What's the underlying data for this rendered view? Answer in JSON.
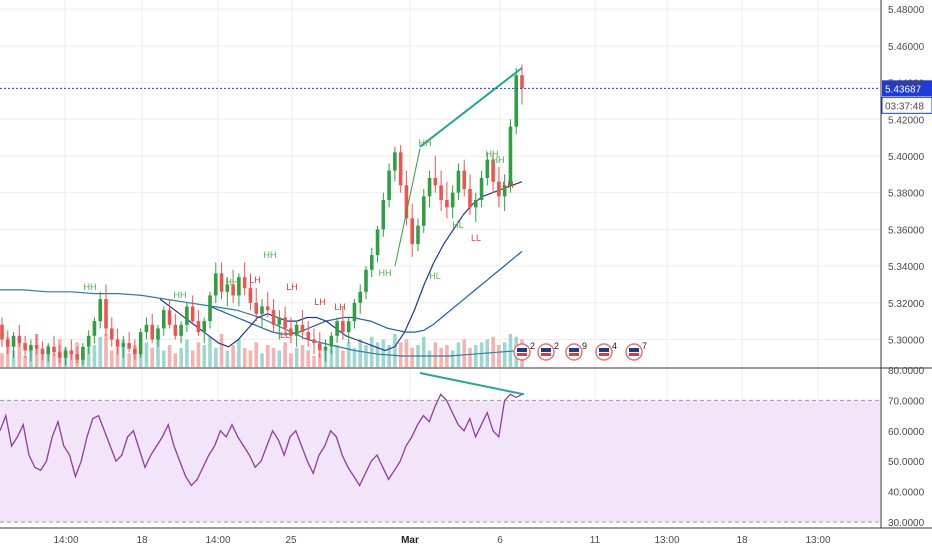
{
  "colors": {
    "up": "#26a69a",
    "down": "#ef5350",
    "up_green": "#2ea043",
    "swing_line": "#26a69a",
    "hh_green": "#4caf50",
    "ll_red": "#e53935",
    "ma_short": "#1e3a8a",
    "ma_long": "#1e5fa8",
    "ma_flat": "#2e7da0",
    "rsi_line": "#8e3d9b",
    "rsi_band": "#f3e5f9",
    "rsi_divergence": "#26a69a",
    "current_price_line": "#1e3ad8",
    "price_tag_bg": "#1e3ad8",
    "grid": "#eeeeee",
    "axis_text": "#4a4a4a"
  },
  "price_axis": {
    "ticks": [
      "5.48000",
      "5.46000",
      "5.44000",
      "5.42000",
      "5.40000",
      "5.38000",
      "5.36000",
      "5.34000",
      "5.32000",
      "5.30000"
    ],
    "current_price": "5.43687",
    "countdown": "03:37:48"
  },
  "rsi_axis": {
    "ticks": [
      "80.0000",
      "70.0000",
      "60.0000",
      "50.0000",
      "40.0000",
      "30.0000"
    ]
  },
  "time_axis": {
    "labels": [
      {
        "text": "14:00",
        "bold": false
      },
      {
        "text": "18",
        "bold": false
      },
      {
        "text": "14:00",
        "bold": false
      },
      {
        "text": "25",
        "bold": false
      },
      {
        "text": "Mar",
        "bold": true
      },
      {
        "text": "6",
        "bold": false
      },
      {
        "text": "11",
        "bold": false
      },
      {
        "text": "13:00",
        "bold": false
      },
      {
        "text": "18",
        "bold": false
      },
      {
        "text": "13:00",
        "bold": false
      }
    ]
  },
  "events": [
    {
      "count": "2"
    },
    {
      "count": "2"
    },
    {
      "count": "9"
    },
    {
      "count": "4"
    },
    {
      "count": "7"
    }
  ],
  "swing_labels": [
    {
      "text": "HH",
      "type": "HH"
    },
    {
      "text": "HH",
      "type": "HH"
    },
    {
      "text": "HH",
      "type": "HH"
    },
    {
      "text": "LH",
      "type": "LH"
    },
    {
      "text": "LH",
      "type": "LH"
    },
    {
      "text": "LH",
      "type": "LH"
    },
    {
      "text": "LL",
      "type": "LL"
    },
    {
      "text": "HH",
      "type": "HH"
    },
    {
      "text": "HH",
      "type": "HH"
    },
    {
      "text": "HL",
      "type": "HL"
    },
    {
      "text": "HL",
      "type": "HL"
    },
    {
      "text": "HH",
      "type": "HH"
    },
    {
      "text": "LL",
      "type": "LL"
    },
    {
      "text": "HH",
      "type": "HH"
    },
    {
      "text": "LH",
      "type": "LH"
    },
    {
      "text": "HH",
      "type": "HH"
    },
    {
      "text": "LH",
      "type": "LH"
    }
  ],
  "chart_data": [
    {
      "type": "candlestick",
      "ylim": [
        5.285,
        5.485
      ],
      "grid": true,
      "current_price": 5.43687,
      "candles": [
        [
          5.308,
          5.312,
          5.296,
          5.3
        ],
        [
          5.3,
          5.305,
          5.292,
          5.296
        ],
        [
          5.296,
          5.304,
          5.29,
          5.302
        ],
        [
          5.302,
          5.308,
          5.296,
          5.298
        ],
        [
          5.298,
          5.302,
          5.29,
          5.294
        ],
        [
          5.294,
          5.3,
          5.288,
          5.297
        ],
        [
          5.297,
          5.303,
          5.292,
          5.295
        ],
        [
          5.295,
          5.299,
          5.289,
          5.292
        ],
        [
          5.292,
          5.298,
          5.288,
          5.296
        ],
        [
          5.296,
          5.302,
          5.291,
          5.293
        ],
        [
          5.293,
          5.297,
          5.287,
          5.29
        ],
        [
          5.29,
          5.296,
          5.286,
          5.294
        ],
        [
          5.294,
          5.3,
          5.289,
          5.292
        ],
        [
          5.292,
          5.296,
          5.287,
          5.289
        ],
        [
          5.289,
          5.298,
          5.286,
          5.296
        ],
        [
          5.296,
          5.305,
          5.292,
          5.302
        ],
        [
          5.302,
          5.312,
          5.298,
          5.31
        ],
        [
          5.31,
          5.326,
          5.306,
          5.322
        ],
        [
          5.322,
          5.33,
          5.302,
          5.306
        ],
        [
          5.306,
          5.312,
          5.296,
          5.3
        ],
        [
          5.3,
          5.306,
          5.292,
          5.296
        ],
        [
          5.296,
          5.302,
          5.29,
          5.298
        ],
        [
          5.298,
          5.304,
          5.293,
          5.295
        ],
        [
          5.295,
          5.3,
          5.289,
          5.292
        ],
        [
          5.292,
          5.306,
          5.29,
          5.304
        ],
        [
          5.304,
          5.312,
          5.3,
          5.308
        ],
        [
          5.308,
          5.314,
          5.298,
          5.3
        ],
        [
          5.3,
          5.308,
          5.296,
          5.306
        ],
        [
          5.306,
          5.318,
          5.302,
          5.316
        ],
        [
          5.316,
          5.322,
          5.306,
          5.308
        ],
        [
          5.308,
          5.314,
          5.3,
          5.302
        ],
        [
          5.302,
          5.31,
          5.298,
          5.308
        ],
        [
          5.308,
          5.32,
          5.304,
          5.318
        ],
        [
          5.318,
          5.324,
          5.308,
          5.31
        ],
        [
          5.31,
          5.316,
          5.302,
          5.304
        ],
        [
          5.304,
          5.312,
          5.298,
          5.31
        ],
        [
          5.31,
          5.326,
          5.306,
          5.324
        ],
        [
          5.324,
          5.342,
          5.32,
          5.336
        ],
        [
          5.336,
          5.342,
          5.322,
          5.326
        ],
        [
          5.326,
          5.334,
          5.318,
          5.33
        ],
        [
          5.33,
          5.338,
          5.32,
          5.324
        ],
        [
          5.324,
          5.336,
          5.318,
          5.334
        ],
        [
          5.334,
          5.342,
          5.324,
          5.328
        ],
        [
          5.328,
          5.336,
          5.316,
          5.32
        ],
        [
          5.32,
          5.328,
          5.31,
          5.314
        ],
        [
          5.314,
          5.322,
          5.306,
          5.318
        ],
        [
          5.318,
          5.326,
          5.312,
          5.316
        ],
        [
          5.316,
          5.322,
          5.304,
          5.308
        ],
        [
          5.308,
          5.316,
          5.3,
          5.312
        ],
        [
          5.312,
          5.318,
          5.302,
          5.306
        ],
        [
          5.306,
          5.312,
          5.298,
          5.302
        ],
        [
          5.302,
          5.31,
          5.296,
          5.308
        ],
        [
          5.308,
          5.316,
          5.3,
          5.304
        ],
        [
          5.304,
          5.31,
          5.296,
          5.3
        ],
        [
          5.3,
          5.306,
          5.292,
          5.298
        ],
        [
          5.298,
          5.304,
          5.29,
          5.294
        ],
        [
          5.294,
          5.3,
          5.288,
          5.296
        ],
        [
          5.296,
          5.304,
          5.292,
          5.302
        ],
        [
          5.302,
          5.312,
          5.298,
          5.31
        ],
        [
          5.31,
          5.318,
          5.3,
          5.304
        ],
        [
          5.304,
          5.312,
          5.298,
          5.31
        ],
        [
          5.31,
          5.322,
          5.306,
          5.32
        ],
        [
          5.32,
          5.33,
          5.314,
          5.326
        ],
        [
          5.326,
          5.34,
          5.322,
          5.338
        ],
        [
          5.338,
          5.35,
          5.334,
          5.346
        ],
        [
          5.346,
          5.362,
          5.342,
          5.36
        ],
        [
          5.36,
          5.38,
          5.356,
          5.376
        ],
        [
          5.376,
          5.396,
          5.372,
          5.392
        ],
        [
          5.392,
          5.405,
          5.386,
          5.402
        ],
        [
          5.402,
          5.406,
          5.38,
          5.384
        ],
        [
          5.384,
          5.392,
          5.362,
          5.366
        ],
        [
          5.366,
          5.374,
          5.345,
          5.352
        ],
        [
          5.352,
          5.366,
          5.348,
          5.362
        ],
        [
          5.362,
          5.382,
          5.358,
          5.378
        ],
        [
          5.378,
          5.392,
          5.372,
          5.388
        ],
        [
          5.388,
          5.4,
          5.38,
          5.384
        ],
        [
          5.384,
          5.392,
          5.37,
          5.376
        ],
        [
          5.376,
          5.386,
          5.366,
          5.372
        ],
        [
          5.372,
          5.384,
          5.366,
          5.38
        ],
        [
          5.38,
          5.396,
          5.376,
          5.392
        ],
        [
          5.392,
          5.398,
          5.378,
          5.382
        ],
        [
          5.382,
          5.39,
          5.368,
          5.372
        ],
        [
          5.372,
          5.38,
          5.364,
          5.376
        ],
        [
          5.376,
          5.392,
          5.372,
          5.388
        ],
        [
          5.388,
          5.402,
          5.384,
          5.398
        ],
        [
          5.398,
          5.402,
          5.38,
          5.386
        ],
        [
          5.386,
          5.394,
          5.372,
          5.378
        ],
        [
          5.378,
          5.39,
          5.37,
          5.384
        ],
        [
          5.384,
          5.42,
          5.38,
          5.416
        ],
        [
          5.416,
          5.448,
          5.412,
          5.444
        ],
        [
          5.444,
          5.45,
          5.428,
          5.437
        ]
      ],
      "ma_short": [
        5.322,
        5.318,
        5.314,
        5.31,
        5.306,
        5.302,
        5.298,
        5.296,
        5.3,
        5.306,
        5.312,
        5.314,
        5.312,
        5.31,
        5.31,
        5.312,
        5.312,
        5.31,
        5.306,
        5.302,
        5.3,
        5.298,
        5.296,
        5.294,
        5.296,
        5.304,
        5.316,
        5.33,
        5.342,
        5.352,
        5.36,
        5.368,
        5.374,
        5.378,
        5.38,
        5.382,
        5.384,
        5.386
      ],
      "ma_long": [
        5.318,
        5.316,
        5.314,
        5.312,
        5.31,
        5.308,
        5.306,
        5.304,
        5.303,
        5.303,
        5.304,
        5.306,
        5.308,
        5.31,
        5.311,
        5.312,
        5.312,
        5.311,
        5.31,
        5.308,
        5.306,
        5.305,
        5.304,
        5.304,
        5.305,
        5.308,
        5.312,
        5.316,
        5.32,
        5.324,
        5.328,
        5.332,
        5.336,
        5.34,
        5.344,
        5.348
      ],
      "ma_flat": [
        5.327,
        5.327,
        5.326,
        5.326,
        5.325,
        5.325,
        5.324,
        5.322,
        5.32,
        5.318,
        5.316,
        5.312,
        5.306,
        5.3,
        5.297,
        5.294,
        5.292,
        5.291,
        5.291,
        5.291,
        5.292,
        5.293,
        5.294
      ],
      "volume": [
        0.25,
        0.55,
        0.3,
        0.45,
        0.2,
        0.35,
        0.6,
        0.3,
        0.4,
        0.25,
        0.5,
        0.35,
        0.3,
        0.45,
        0.25,
        0.35,
        0.4,
        0.55,
        0.6,
        0.3,
        0.35,
        0.5,
        0.25,
        0.4,
        0.3,
        0.45,
        0.35,
        0.55,
        0.3,
        0.4,
        0.25,
        0.35,
        0.5,
        0.3,
        0.45,
        0.4,
        0.55,
        0.35,
        0.6,
        0.3,
        0.4,
        0.5,
        0.35,
        0.3,
        0.45,
        0.25,
        0.4,
        0.35,
        0.3,
        0.45,
        0.25,
        0.35,
        0.4,
        0.3,
        0.2,
        0.25,
        0.3,
        0.35,
        0.4,
        0.3,
        0.45,
        0.35,
        0.5,
        0.4,
        0.55,
        0.45,
        0.5,
        0.4,
        0.6,
        0.45,
        0.5,
        0.35,
        0.4,
        0.55,
        0.3,
        0.45,
        0.35,
        0.4,
        0.3,
        0.45,
        0.5,
        0.35,
        0.4,
        0.45,
        0.5,
        0.55,
        0.4,
        0.45,
        0.6,
        0.55,
        0.5
      ]
    },
    {
      "type": "line",
      "title": "",
      "ylim": [
        30,
        80
      ],
      "band": [
        30,
        70
      ],
      "values": [
        60,
        65,
        55,
        58,
        62,
        52,
        48,
        47,
        50,
        58,
        63,
        55,
        52,
        45,
        50,
        58,
        64,
        65,
        60,
        55,
        50,
        52,
        58,
        60,
        54,
        48,
        52,
        55,
        58,
        62,
        55,
        50,
        45,
        42,
        44,
        48,
        52,
        55,
        60,
        58,
        62,
        58,
        55,
        52,
        48,
        50,
        55,
        60,
        57,
        52,
        58,
        60,
        55,
        50,
        46,
        52,
        55,
        60,
        58,
        52,
        48,
        45,
        42,
        46,
        50,
        52,
        48,
        44,
        47,
        50,
        55,
        58,
        62,
        65,
        63,
        68,
        72,
        70,
        66,
        62,
        60,
        64,
        58,
        62,
        66,
        60,
        58,
        70,
        72,
        71,
        72
      ],
      "divergence": [
        [
          5.405,
          79
        ],
        [
          5.448,
          72
        ]
      ]
    }
  ]
}
